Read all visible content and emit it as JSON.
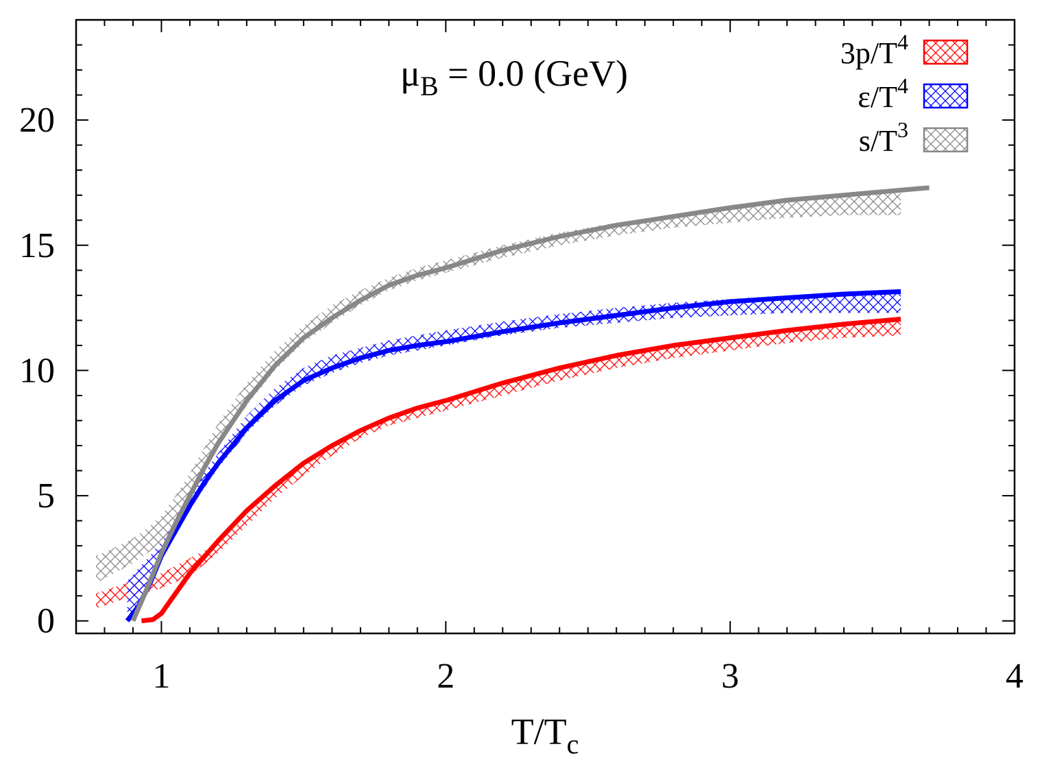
{
  "chart_data": {
    "type": "line",
    "title": "μB = 0.0 (GeV)",
    "title_parts": {
      "symbol": "μ",
      "subscript": "B",
      "rest": " = 0.0 (GeV)"
    },
    "xlabel": "T/Tc",
    "xlabel_parts": {
      "base": "T/T",
      "subscript": "c"
    },
    "ylabel": "",
    "xlim": [
      0.7,
      4.0
    ],
    "ylim": [
      -0.5,
      24.0
    ],
    "xticks": [
      1,
      2,
      3,
      4
    ],
    "yticks": [
      0,
      5,
      10,
      15,
      20
    ],
    "grid": false,
    "legend_position": "top-right",
    "series": [
      {
        "name": "3p/T4",
        "label_base": "3p/T",
        "label_sup": "4",
        "color": "#ff0000",
        "line": {
          "x": [
            0.93,
            0.97,
            1.0,
            1.1,
            1.2,
            1.3,
            1.4,
            1.5,
            1.6,
            1.7,
            1.8,
            1.9,
            2.0,
            2.2,
            2.4,
            2.6,
            2.8,
            3.0,
            3.2,
            3.4,
            3.6
          ],
          "y": [
            0.0,
            0.05,
            0.3,
            1.9,
            3.2,
            4.4,
            5.4,
            6.3,
            7.0,
            7.6,
            8.1,
            8.5,
            8.8,
            9.5,
            10.1,
            10.6,
            11.0,
            11.3,
            11.6,
            11.85,
            12.05
          ]
        },
        "band": {
          "x": [
            0.77,
            0.9,
            1.0,
            1.1,
            1.2,
            1.3,
            1.4,
            1.5,
            1.6,
            1.7,
            1.8,
            1.9,
            2.0,
            2.2,
            2.4,
            2.6,
            2.8,
            3.0,
            3.2,
            3.4,
            3.6
          ],
          "lower": [
            0.5,
            1.0,
            1.3,
            1.8,
            2.7,
            3.8,
            4.9,
            5.8,
            6.6,
            7.3,
            7.8,
            8.1,
            8.4,
            9.0,
            9.6,
            10.1,
            10.5,
            10.8,
            11.1,
            11.3,
            11.4
          ],
          "upper": [
            1.1,
            1.6,
            1.9,
            2.5,
            3.1,
            4.2,
            5.3,
            6.2,
            7.0,
            7.6,
            8.1,
            8.5,
            8.8,
            9.5,
            10.1,
            10.6,
            11.0,
            11.3,
            11.6,
            11.85,
            12.05
          ]
        }
      },
      {
        "name": "ε/T4",
        "label_base": "ε/T",
        "label_sup": "4",
        "color": "#0000ff",
        "line": {
          "x": [
            0.88,
            0.92,
            0.96,
            1.0,
            1.05,
            1.1,
            1.15,
            1.2,
            1.3,
            1.4,
            1.5,
            1.6,
            1.7,
            1.8,
            1.9,
            2.0,
            2.2,
            2.4,
            2.6,
            2.8,
            3.0,
            3.2,
            3.4,
            3.6
          ],
          "y": [
            0.0,
            0.6,
            1.5,
            2.6,
            3.6,
            4.6,
            5.5,
            6.3,
            7.7,
            8.8,
            9.6,
            10.1,
            10.5,
            10.8,
            11.0,
            11.15,
            11.55,
            11.9,
            12.2,
            12.5,
            12.75,
            12.9,
            13.05,
            13.15
          ]
        },
        "band": {
          "x": [
            0.88,
            0.92,
            0.96,
            1.0,
            1.05,
            1.1,
            1.15,
            1.2,
            1.3,
            1.4,
            1.5,
            1.6,
            1.7,
            1.8,
            1.9,
            2.0,
            2.2,
            2.4,
            2.6,
            2.8,
            3.0,
            3.2,
            3.4,
            3.6
          ],
          "lower": [
            0.0,
            0.5,
            1.4,
            2.5,
            3.4,
            4.4,
            5.3,
            6.1,
            7.5,
            8.6,
            9.4,
            9.9,
            10.3,
            10.6,
            10.8,
            11.0,
            11.4,
            11.7,
            11.9,
            12.1,
            12.2,
            12.3,
            12.3,
            12.3
          ],
          "upper": [
            1.6,
            2.1,
            2.6,
            3.2,
            4.1,
            5.0,
            5.9,
            6.7,
            8.2,
            9.3,
            10.1,
            10.6,
            10.9,
            11.2,
            11.4,
            11.6,
            11.95,
            12.25,
            12.5,
            12.7,
            12.85,
            13.0,
            13.1,
            13.2
          ]
        }
      },
      {
        "name": "s/T3",
        "label_base": "s/T",
        "label_sup": "3",
        "color": "#888888",
        "line": {
          "x": [
            0.9,
            0.95,
            1.0,
            1.05,
            1.1,
            1.15,
            1.2,
            1.3,
            1.4,
            1.5,
            1.6,
            1.7,
            1.8,
            1.9,
            2.0,
            2.2,
            2.4,
            2.6,
            2.8,
            3.0,
            3.2,
            3.4,
            3.6,
            3.7
          ],
          "y": [
            0.0,
            1.3,
            2.7,
            3.9,
            5.0,
            6.1,
            7.1,
            8.8,
            10.2,
            11.3,
            12.1,
            12.8,
            13.4,
            13.8,
            14.1,
            14.8,
            15.35,
            15.8,
            16.15,
            16.5,
            16.8,
            17.0,
            17.2,
            17.3
          ]
        },
        "band": {
          "x": [
            0.77,
            0.85,
            0.9,
            0.95,
            1.0,
            1.05,
            1.1,
            1.15,
            1.2,
            1.3,
            1.4,
            1.5,
            1.6,
            1.7,
            1.8,
            1.9,
            2.0,
            2.2,
            2.4,
            2.6,
            2.8,
            3.0,
            3.2,
            3.4,
            3.6
          ],
          "lower": [
            1.5,
            2.0,
            2.3,
            2.7,
            3.1,
            4.0,
            5.0,
            6.0,
            7.0,
            8.6,
            10.0,
            11.1,
            11.9,
            12.6,
            13.2,
            13.6,
            13.9,
            14.5,
            15.0,
            15.4,
            15.7,
            15.9,
            16.1,
            16.2,
            16.2
          ],
          "upper": [
            2.6,
            3.0,
            3.3,
            3.7,
            4.2,
            5.0,
            5.9,
            6.9,
            7.9,
            9.5,
            10.8,
            11.8,
            12.6,
            13.2,
            13.7,
            14.1,
            14.4,
            15.0,
            15.5,
            15.9,
            16.2,
            16.5,
            16.8,
            17.0,
            17.2
          ]
        }
      }
    ]
  }
}
